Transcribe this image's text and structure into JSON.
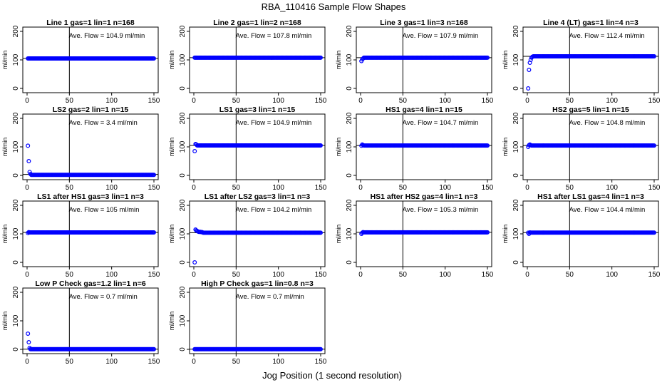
{
  "chart_data": {
    "type": "scatter",
    "title": "RBA_110416  Sample Flow Shapes",
    "xlabel": "Jog Position (1 second resolution)",
    "colors": {
      "points": "#0000ff",
      "axis": "#000000",
      "background": "#ffffff"
    },
    "panels": [
      {
        "title": "Line 1 gas=1 lin=1 n=168",
        "annotation": "Ave. Flow = 104.9  ml/min",
        "ylabel": "ml/min",
        "xlim": [
          0,
          150
        ],
        "ylim": [
          -15,
          215
        ],
        "xticks": [
          0,
          50,
          100,
          150
        ],
        "yticks": [
          0,
          100,
          200
        ],
        "vline": 50,
        "hline": 104.9,
        "xrange": [
          1,
          150
        ],
        "start_values": [],
        "plateau": 104.9
      },
      {
        "title": "Line 2 gas=1 lin=2 n=168",
        "annotation": "Ave. Flow = 107.8  ml/min",
        "ylabel": "ml/min",
        "xlim": [
          0,
          150
        ],
        "ylim": [
          -15,
          215
        ],
        "xticks": [
          0,
          50,
          100,
          150
        ],
        "yticks": [
          0,
          100,
          200
        ],
        "vline": 50,
        "hline": 107.8,
        "xrange": [
          1,
          150
        ],
        "start_values": [],
        "plateau": 107.8
      },
      {
        "title": "Line 3 gas=1 lin=3 n=168",
        "annotation": "Ave. Flow = 107.9  ml/min",
        "ylabel": "ml/min",
        "xlim": [
          0,
          150
        ],
        "ylim": [
          -15,
          215
        ],
        "xticks": [
          0,
          50,
          100,
          150
        ],
        "yticks": [
          0,
          100,
          200
        ],
        "vline": 50,
        "hline": 107.9,
        "xrange": [
          1,
          150
        ],
        "start_values": [
          96,
          102,
          105
        ],
        "plateau": 107.9
      },
      {
        "title": "Line 4 (LT) gas=1 lin=4 n=3",
        "annotation": "Ave. Flow = 112.4  ml/min",
        "ylabel": "ml/min",
        "xlim": [
          0,
          150
        ],
        "ylim": [
          -15,
          215
        ],
        "xticks": [
          0,
          50,
          100,
          150
        ],
        "yticks": [
          0,
          100,
          200
        ],
        "vline": 50,
        "hline": 112.4,
        "xrange": [
          1,
          150
        ],
        "start_values": [
          0,
          65,
          90,
          100,
          108,
          111
        ],
        "plateau": 112.4
      },
      {
        "title": "LS2 gas=2 lin=1 n=15",
        "annotation": "Ave. Flow = 3.4  ml/min",
        "ylabel": "ml/min",
        "xlim": [
          0,
          150
        ],
        "ylim": [
          -15,
          215
        ],
        "xticks": [
          0,
          50,
          100,
          150
        ],
        "yticks": [
          0,
          100,
          200
        ],
        "vline": 50,
        "hline": 3.4,
        "xrange": [
          1,
          150
        ],
        "start_values": [
          104,
          50,
          12,
          5
        ],
        "plateau": 2
      },
      {
        "title": "LS1 gas=3 lin=1 n=15",
        "annotation": "Ave. Flow = 104.9  ml/min",
        "ylabel": "ml/min",
        "xlim": [
          0,
          150
        ],
        "ylim": [
          -15,
          215
        ],
        "xticks": [
          0,
          50,
          100,
          150
        ],
        "yticks": [
          0,
          100,
          200
        ],
        "vline": 50,
        "hline": 104.9,
        "xrange": [
          1,
          150
        ],
        "start_values": [
          85,
          110,
          108
        ],
        "plateau": 104.9
      },
      {
        "title": "HS1 gas=4 lin=1 n=15",
        "annotation": "Ave. Flow = 104.7  ml/min",
        "ylabel": "ml/min",
        "xlim": [
          0,
          150
        ],
        "ylim": [
          -15,
          215
        ],
        "xticks": [
          0,
          50,
          100,
          150
        ],
        "yticks": [
          0,
          100,
          200
        ],
        "vline": 50,
        "hline": 104.7,
        "xrange": [
          1,
          150
        ],
        "start_values": [
          104,
          108,
          106
        ],
        "plateau": 104.7
      },
      {
        "title": "HS2 gas=5 lin=1 n=15",
        "annotation": "Ave. Flow = 104.8  ml/min",
        "ylabel": "ml/min",
        "xlim": [
          0,
          150
        ],
        "ylim": [
          -15,
          215
        ],
        "xticks": [
          0,
          50,
          100,
          150
        ],
        "yticks": [
          0,
          100,
          200
        ],
        "vline": 50,
        "hline": 104.8,
        "xrange": [
          1,
          150
        ],
        "start_values": [
          100,
          106,
          108,
          106
        ],
        "plateau": 104.8
      },
      {
        "title": "LS1 after HS1 gas=3 lin=1 n=3",
        "annotation": "Ave. Flow = 105  ml/min",
        "ylabel": "ml/min",
        "xlim": [
          0,
          150
        ],
        "ylim": [
          -15,
          215
        ],
        "xticks": [
          0,
          50,
          100,
          150
        ],
        "yticks": [
          0,
          100,
          200
        ],
        "vline": 50,
        "hline": 105,
        "xrange": [
          1,
          150
        ],
        "start_values": [
          103,
          106,
          105
        ],
        "plateau": 105
      },
      {
        "title": "LS1 after LS2 gas=3 lin=1 n=3",
        "annotation": "Ave. Flow = 104.2  ml/min",
        "ylabel": "ml/min",
        "xlim": [
          0,
          150
        ],
        "ylim": [
          -15,
          215
        ],
        "xticks": [
          0,
          50,
          100,
          150
        ],
        "yticks": [
          0,
          100,
          200
        ],
        "vline": 50,
        "hline": 104.2,
        "xrange": [
          1,
          150
        ],
        "start_values": [
          0,
          115,
          112,
          110,
          108,
          107,
          107,
          107,
          106,
          106
        ],
        "plateau": 104.2
      },
      {
        "title": "HS1 after HS2 gas=4 lin=1 n=3",
        "annotation": "Ave. Flow = 105.3  ml/min",
        "ylabel": "ml/min",
        "xlim": [
          0,
          150
        ],
        "ylim": [
          -15,
          215
        ],
        "xticks": [
          0,
          50,
          100,
          150
        ],
        "yticks": [
          0,
          100,
          200
        ],
        "vline": 50,
        "hline": 105.3,
        "xrange": [
          1,
          150
        ],
        "start_values": [
          100,
          104,
          106
        ],
        "plateau": 105.3
      },
      {
        "title": "HS1 after LS1 gas=4 lin=1 n=3",
        "annotation": "Ave. Flow = 104.4  ml/min",
        "ylabel": "ml/min",
        "xlim": [
          0,
          150
        ],
        "ylim": [
          -15,
          215
        ],
        "xticks": [
          0,
          50,
          100,
          150
        ],
        "yticks": [
          0,
          100,
          200
        ],
        "vline": 50,
        "hline": 104.4,
        "xrange": [
          1,
          150
        ],
        "start_values": [
          104,
          100,
          105
        ],
        "plateau": 104.4
      },
      {
        "title": "Low P Check gas=1.2 lin=1 n=6",
        "annotation": "Ave. Flow = 0.7  ml/min",
        "ylabel": "ml/min",
        "xlim": [
          0,
          150
        ],
        "ylim": [
          -15,
          215
        ],
        "xticks": [
          0,
          50,
          100,
          150
        ],
        "yticks": [
          0,
          100,
          200
        ],
        "vline": 50,
        "hline": 0.7,
        "xrange": [
          1,
          150
        ],
        "start_values": [
          55,
          25,
          5
        ],
        "plateau": 0.5
      },
      {
        "title": "High P Check gas=1 lin=0.8 n=3",
        "annotation": "Ave. Flow = 0.7  ml/min",
        "ylabel": "ml/min",
        "xlim": [
          0,
          150
        ],
        "ylim": [
          -15,
          215
        ],
        "xticks": [
          0,
          50,
          100,
          150
        ],
        "yticks": [
          0,
          100,
          200
        ],
        "vline": 50,
        "hline": 0.7,
        "xrange": [
          1,
          150
        ],
        "start_values": [],
        "plateau": 0.5
      }
    ]
  }
}
